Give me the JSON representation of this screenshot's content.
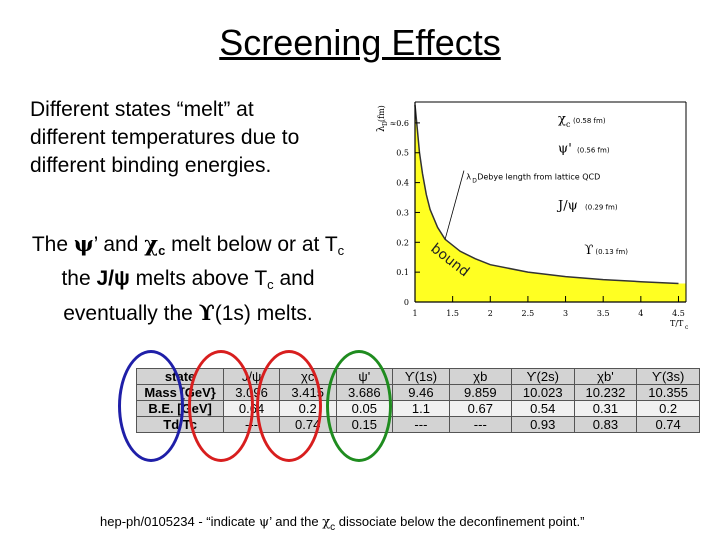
{
  "slide": {
    "title": "Screening Effects",
    "intro": [
      "Different states “melt” at",
      "different temperatures due to",
      "different binding energies."
    ],
    "melt_line1": {
      "a": "The ",
      "psi": "ψ",
      "b": "’ and ",
      "chi": "χ",
      "chi_sub": "c",
      "c": " melt below or at T",
      "tc_sub": "c"
    },
    "melt_line2": {
      "a": "the ",
      "jpsi": "J/ψ",
      "b": " melts above T",
      "tc_sub": "c",
      "c": " and"
    },
    "melt_line3": {
      "a": "eventually the ",
      "ups": "ϒ",
      "b": "(1s) melts."
    },
    "reference": {
      "a": "hep-ph/0105234 - “indicate ",
      "psi": "ψ",
      "b": "’ and the ",
      "chi": "χ",
      "chi_sub": "c",
      "c": " dissociate below the deconfinement point.”"
    }
  },
  "chart_data": {
    "type": "area",
    "title": "",
    "xlabel": "T/T",
    "xlabel_sub": "c",
    "ylabel": "λ",
    "ylabel_sub": "D",
    "ylabel_unit": "(fm)",
    "xlim": [
      1,
      4.6
    ],
    "ylim": [
      0,
      0.67
    ],
    "x_ticks": [
      "1",
      "1.5",
      "2",
      "2.5",
      "3",
      "3.5",
      "4",
      "4.5"
    ],
    "y_ticks": [
      "0",
      "0.1",
      "0.2",
      "0.3",
      "0.4",
      "0.5",
      "≈0.6"
    ],
    "band_label": "bound",
    "series": [
      {
        "name": "Debye length from lattice QCD",
        "label": "λ",
        "label_sub": "D",
        "label_text": " Debye length from lattice QCD",
        "x": [
          1.0,
          1.03,
          1.06,
          1.1,
          1.15,
          1.2,
          1.3,
          1.4,
          1.6,
          1.8,
          2.0,
          2.5,
          3.0,
          3.5,
          4.0,
          4.5
        ],
        "y": [
          0.66,
          0.58,
          0.5,
          0.43,
          0.36,
          0.31,
          0.25,
          0.21,
          0.17,
          0.145,
          0.125,
          0.1,
          0.085,
          0.075,
          0.068,
          0.062
        ]
      }
    ],
    "states": [
      {
        "name": "χc",
        "sym": "χ",
        "sub": "c",
        "radius": "(0.58 fm)",
        "y": 0.6
      },
      {
        "name": "ψ'",
        "sym": "ψ'",
        "sub": "",
        "radius": "(0.56 fm)",
        "y": 0.5
      },
      {
        "name": "J/ψ",
        "sym": "J/ψ",
        "sub": "",
        "radius": "(0.29 fm)",
        "y": 0.31
      },
      {
        "name": "ϒ",
        "sym": "ϒ",
        "sub": "",
        "radius": "(0.13 fm)",
        "y": 0.16
      }
    ]
  },
  "table": {
    "header": [
      "state",
      "J/ψ",
      "χc",
      "ψ'",
      "ϒ(1s)",
      "χb",
      "ϒ(2s)",
      "χb'",
      "ϒ(3s)"
    ],
    "rows": [
      {
        "label": "Mass [GeV}",
        "values": [
          "3.096",
          "3.415",
          "3.686",
          "9.46",
          "9.859",
          "10.023",
          "10.232",
          "10.355"
        ]
      },
      {
        "label": "B.E. [GeV]",
        "values": [
          "0.64",
          "0.2",
          "0.05",
          "1.1",
          "0.67",
          "0.54",
          "0.31",
          "0.2"
        ]
      },
      {
        "label": "Td/Tc",
        "values": [
          "---",
          "0.74",
          "0.15",
          "---",
          "---",
          "0.93",
          "0.83",
          "0.74"
        ]
      }
    ],
    "ring_colors": [
      "#1f1fa8",
      "#d81e1e",
      "#d81e1e",
      "#1f8c1f"
    ]
  }
}
